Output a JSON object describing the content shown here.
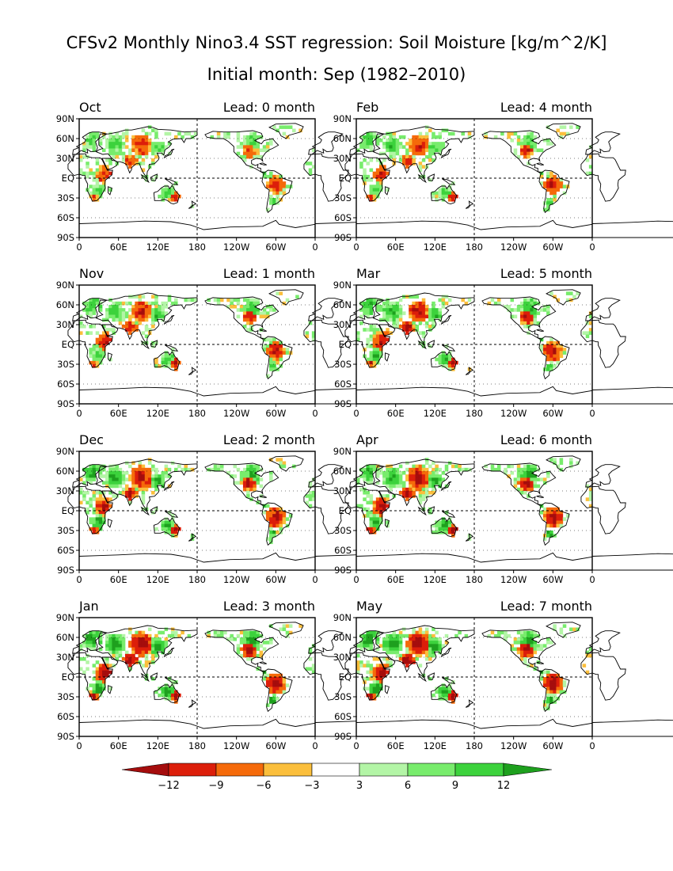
{
  "title": "CFSv2 Monthly Nino3.4 SST regression: Soil Moisture [kg/m^2/K]",
  "subtitle": "Initial month: Sep (1982–2010)",
  "chart_data": {
    "type": "heatmap",
    "title": "CFSv2 Monthly Nino3.4 SST regression: Soil Moisture [kg/m^2/K]",
    "subtitle": "Initial month: Sep (1982–2010)",
    "x_tick_labels": [
      "0",
      "60E",
      "120E",
      "180",
      "120W",
      "60W",
      "0"
    ],
    "y_tick_labels": [
      "90N",
      "60N",
      "30N",
      "EQ",
      "30S",
      "60S",
      "90S"
    ],
    "lon_range": [
      0,
      360
    ],
    "lat_range": [
      -90,
      90
    ],
    "panels": [
      {
        "month": "Oct",
        "lead": "Lead: 0 month"
      },
      {
        "month": "Feb",
        "lead": "Lead: 4 month"
      },
      {
        "month": "Nov",
        "lead": "Lead: 1 month"
      },
      {
        "month": "Mar",
        "lead": "Lead: 5 month"
      },
      {
        "month": "Dec",
        "lead": "Lead: 2 month"
      },
      {
        "month": "Apr",
        "lead": "Lead: 6 month"
      },
      {
        "month": "Jan",
        "lead": "Lead: 3 month"
      },
      {
        "month": "May",
        "lead": "Lead: 7 month"
      }
    ],
    "colorbar": {
      "levels": [
        "−12",
        "−9",
        "−6",
        "−3",
        "3",
        "6",
        "9",
        "12"
      ],
      "colors": [
        "#a50d0d",
        "#dc1e0a",
        "#f56a0a",
        "#fbbf3c",
        "#ffffff",
        "#b3f5a6",
        "#78ec6c",
        "#3cd23c",
        "#1ea01e"
      ]
    },
    "colors": {
      "ocean": "#ffffff",
      "grid": "#000000",
      "land_outline": "#000000"
    }
  }
}
